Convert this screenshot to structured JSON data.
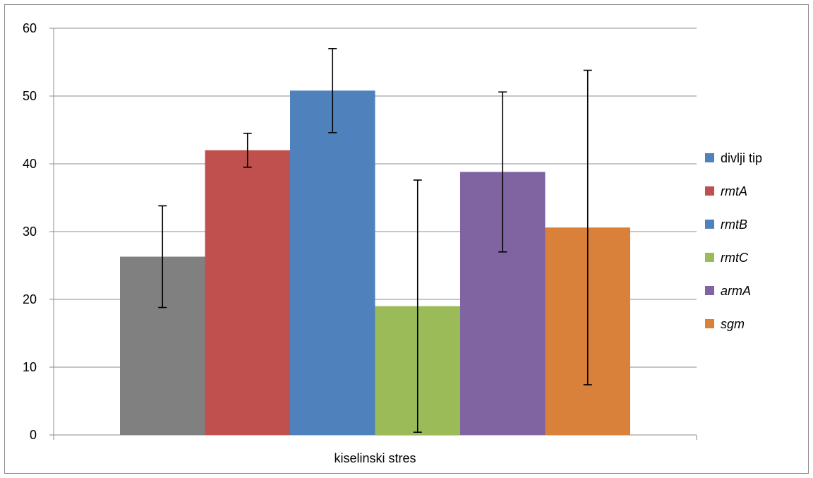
{
  "chart_data": {
    "type": "bar",
    "categories": [
      "kiselinski stres"
    ],
    "series": [
      {
        "name": "divlji tip",
        "values": [
          26.3
        ],
        "error": [
          7.5
        ],
        "color": "#808080",
        "italic": false
      },
      {
        "name": "rmtA",
        "values": [
          42.0
        ],
        "error": [
          2.5
        ],
        "color": "#c0504d",
        "italic": true
      },
      {
        "name": "rmtB",
        "values": [
          50.8
        ],
        "error": [
          6.2
        ],
        "color": "#4f81bd",
        "italic": true
      },
      {
        "name": "rmtC",
        "values": [
          19.0
        ],
        "error": [
          18.6
        ],
        "color": "#9bbb59",
        "italic": true
      },
      {
        "name": "armA",
        "values": [
          38.8
        ],
        "error": [
          11.8
        ],
        "color": "#8064a2",
        "italic": true
      },
      {
        "name": "sgm",
        "values": [
          30.6
        ],
        "error": [
          23.2
        ],
        "color": "#d9803b",
        "italic": true
      }
    ],
    "legend_swatch_colors": [
      "#4f81bd",
      "#c0504d",
      "#4f81bd",
      "#9bbb59",
      "#8064a2",
      "#d9803b"
    ],
    "yticks": [
      "0",
      "10",
      "20",
      "30",
      "40",
      "50",
      "60"
    ],
    "ylim": [
      0,
      60
    ],
    "title": "",
    "xlabel": "",
    "ylabel": "",
    "grid": true,
    "legend_position": "right"
  }
}
